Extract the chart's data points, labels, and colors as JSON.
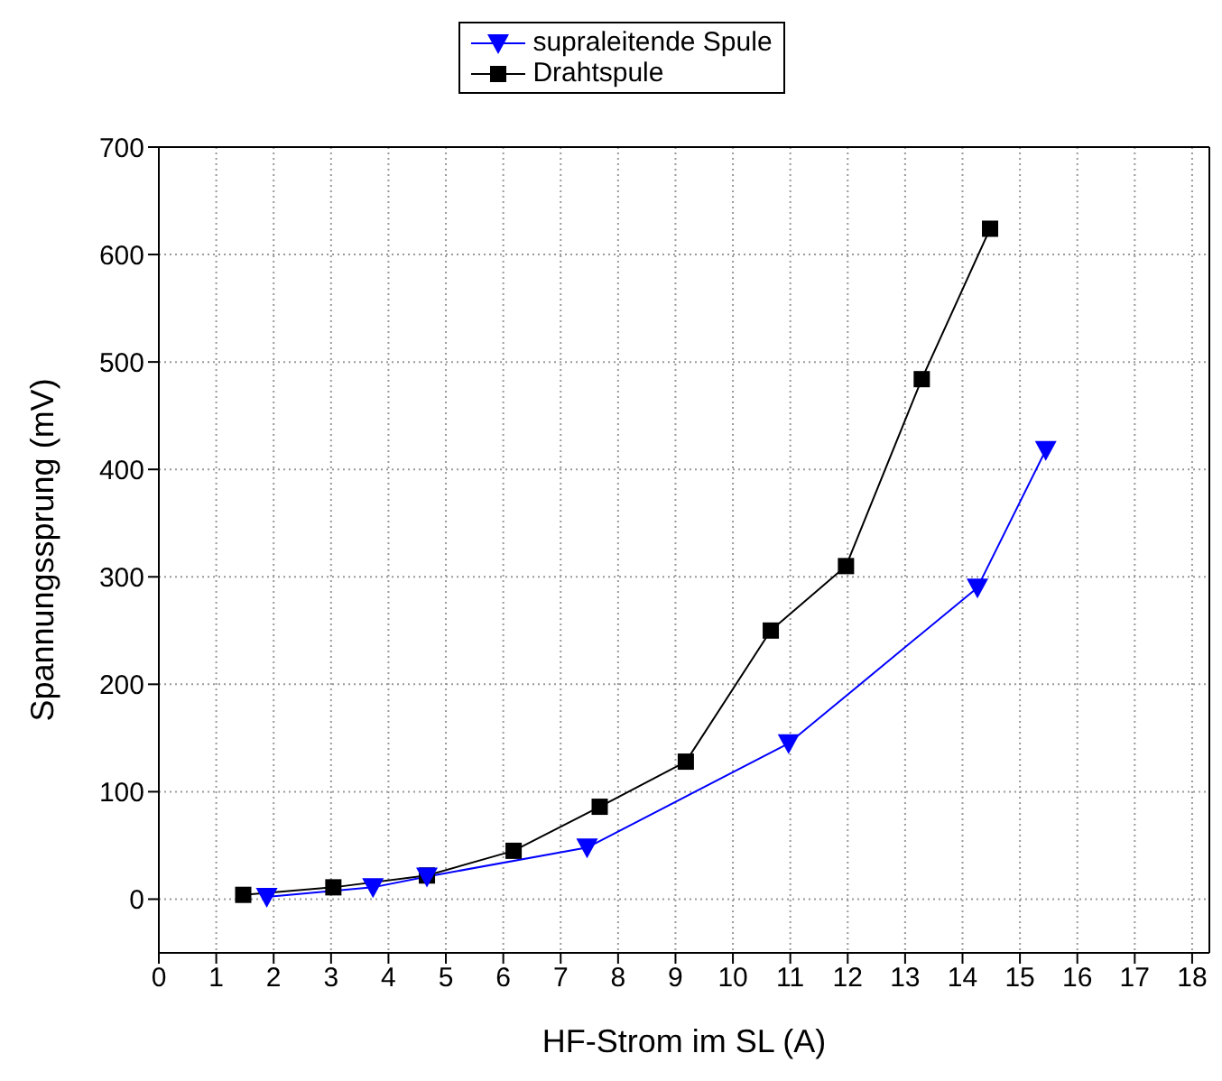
{
  "chart_data": {
    "type": "line",
    "xlabel": "HF-Strom im SL (A)",
    "ylabel": "Spannungssprung (mV)",
    "xlim": [
      0,
      18.3
    ],
    "xticks": [
      0,
      1,
      2,
      3,
      4,
      5,
      6,
      7,
      8,
      9,
      10,
      11,
      12,
      13,
      14,
      15,
      16,
      17,
      18
    ],
    "ylim": [
      -50,
      700
    ],
    "yticks": [
      0,
      100,
      200,
      300,
      400,
      500,
      600,
      700
    ],
    "grid": true,
    "legend": "top",
    "series": [
      {
        "name": "supraleitende Spule",
        "color": "#0000ff",
        "marker": "triangle",
        "x": [
          1.88,
          3.73,
          4.67,
          7.46,
          10.97,
          14.26,
          15.45
        ],
        "values": [
          2,
          11,
          21,
          48,
          145,
          290,
          418
        ]
      },
      {
        "name": "Drahtspule",
        "color": "#000000",
        "marker": "square",
        "x": [
          1.47,
          3.04,
          4.67,
          6.18,
          7.68,
          9.18,
          10.66,
          11.97,
          13.29,
          14.48
        ],
        "values": [
          4,
          11,
          22,
          45,
          86,
          128,
          250,
          310,
          484,
          624
        ]
      }
    ]
  }
}
